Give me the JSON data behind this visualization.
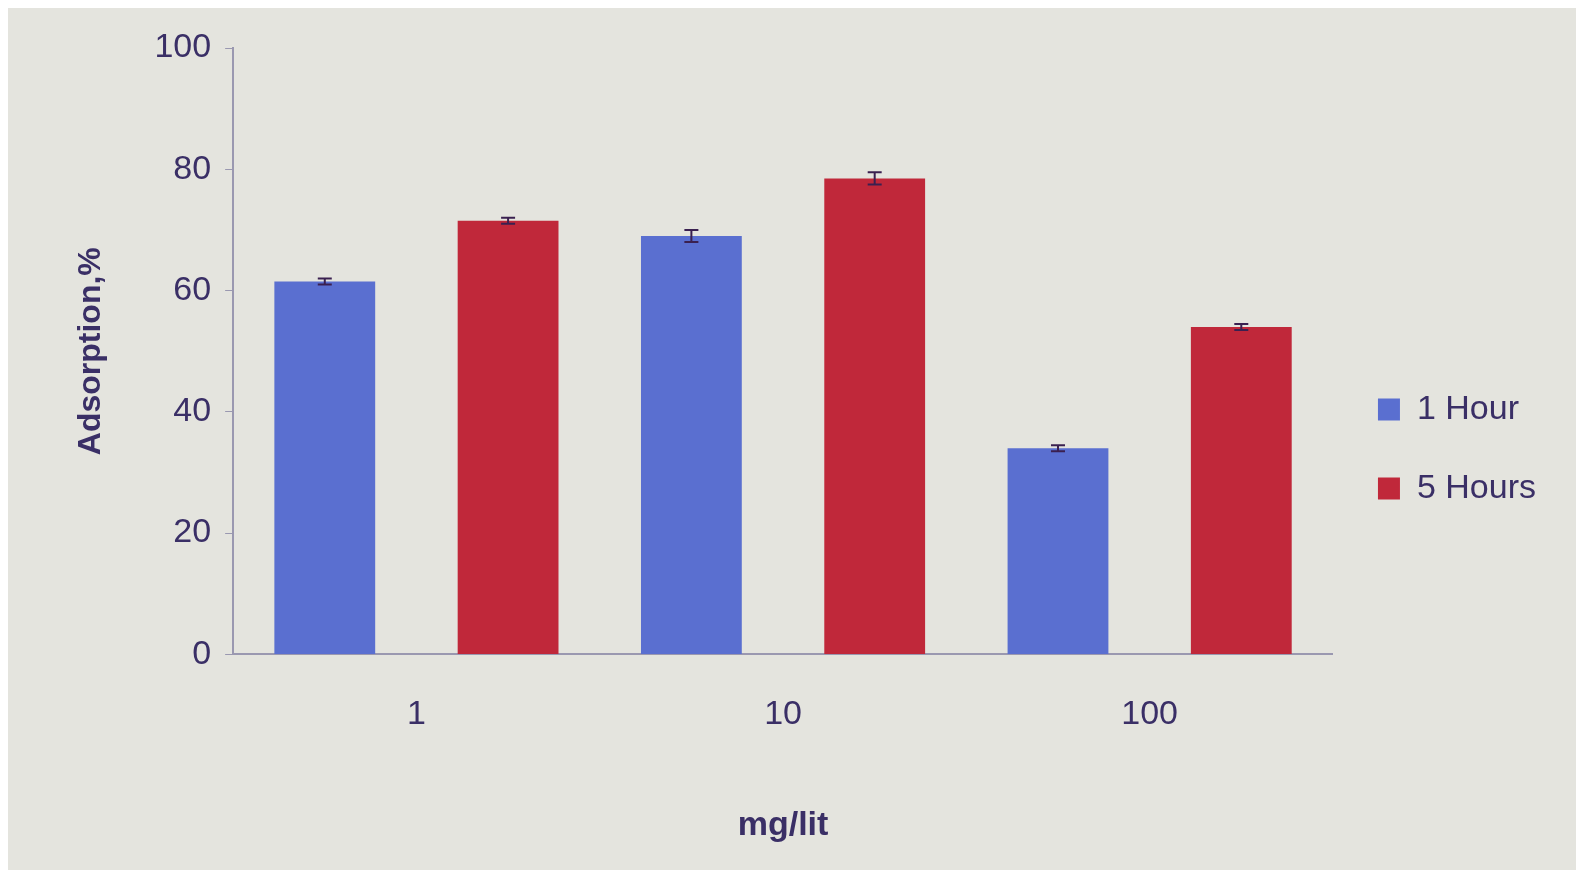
{
  "chart_data": {
    "type": "bar",
    "xlabel": "mg/lit",
    "ylabel": "Adsorption,%",
    "categories": [
      "1",
      "10",
      "100"
    ],
    "series": [
      {
        "name": "1 Hour",
        "color": "#5a6fd0",
        "values": [
          61.5,
          69,
          34
        ],
        "errors": [
          0.5,
          1,
          0.5
        ]
      },
      {
        "name": "5 Hours",
        "color": "#c0283a",
        "values": [
          71.5,
          78.5,
          54
        ],
        "errors": [
          0.5,
          1,
          0.5
        ]
      }
    ],
    "ylim": [
      0,
      100
    ],
    "yticks": [
      0,
      20,
      40,
      60,
      80,
      100
    ],
    "grid": false,
    "legend": "right"
  }
}
